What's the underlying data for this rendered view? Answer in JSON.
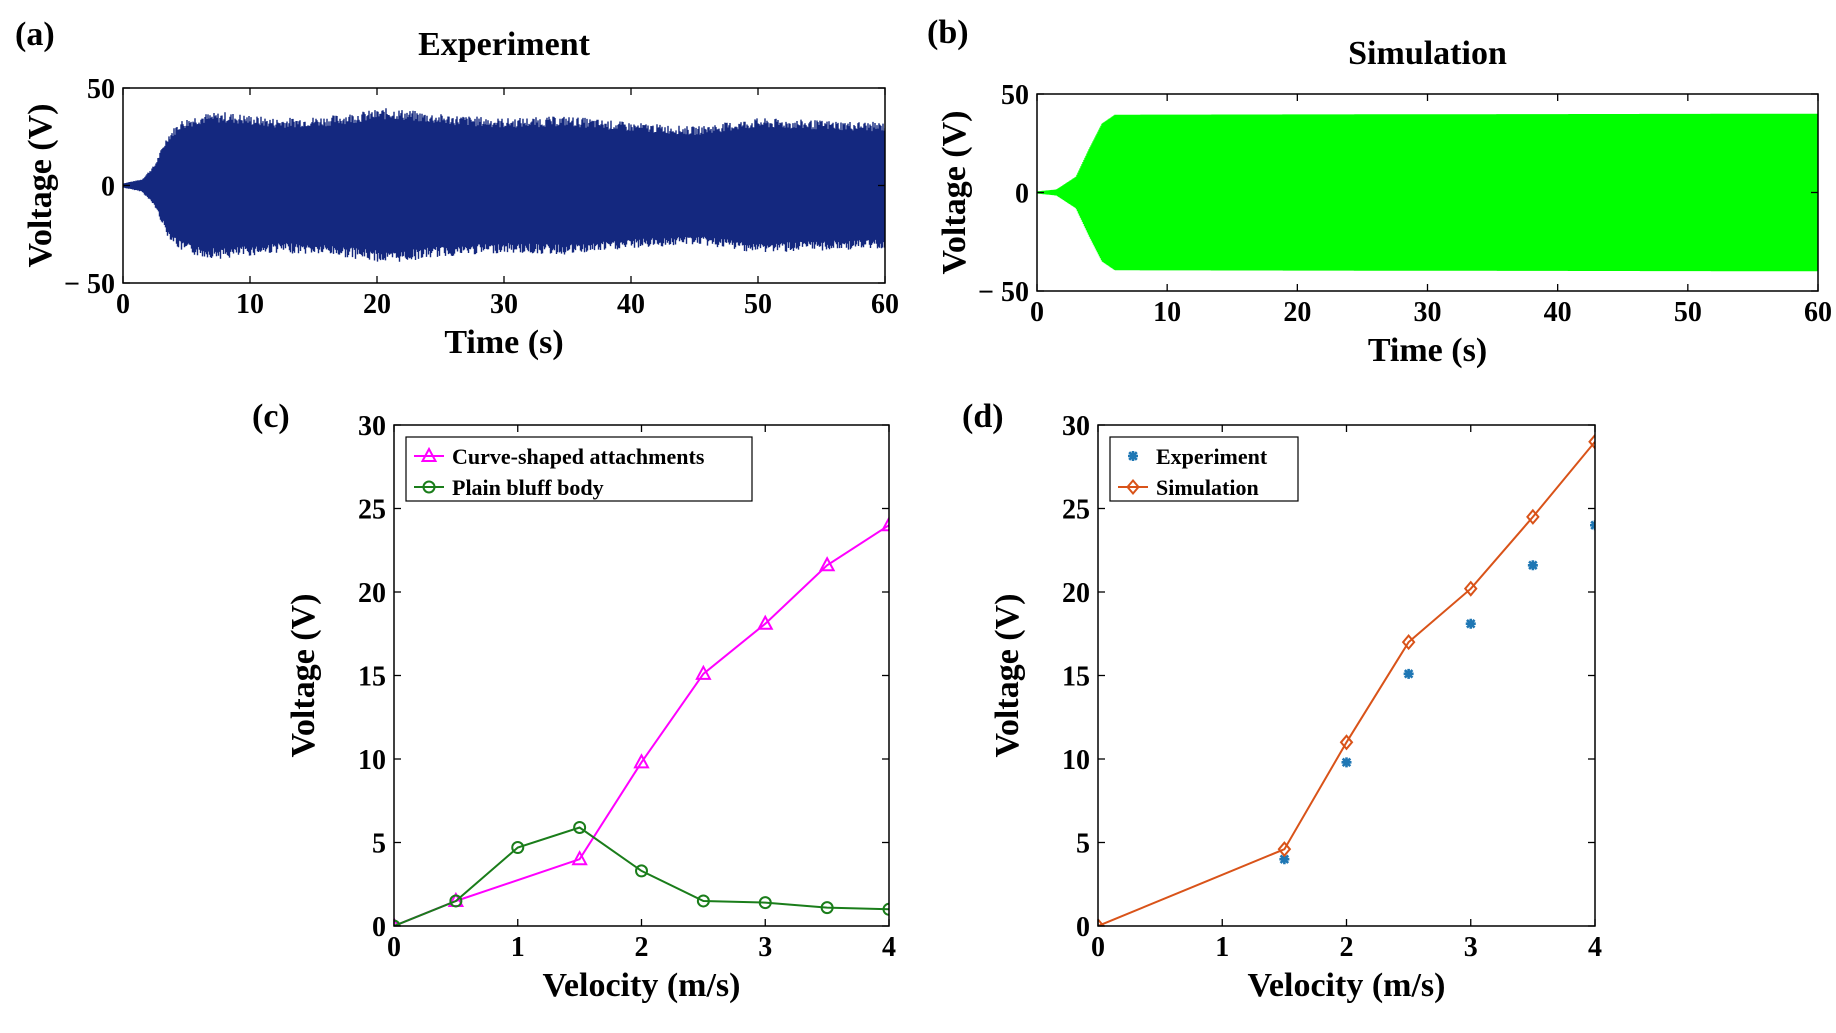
{
  "chart_data": [
    {
      "id": "a",
      "panel_label": "(a)",
      "type": "line",
      "title": "Experiment",
      "xlabel": "Time (s)",
      "ylabel": "Voltage (V)",
      "xlim": [
        0,
        60
      ],
      "ylim": [
        -50,
        50
      ],
      "xticks": [
        0,
        10,
        20,
        30,
        40,
        50,
        60
      ],
      "xtick_labels": [
        "0",
        "10",
        "20",
        "30",
        "40",
        "50",
        "60"
      ],
      "yticks": [
        -50,
        0,
        50
      ],
      "ytick_labels": [
        "− 50",
        "0",
        "50"
      ],
      "color": "#14287f",
      "signal": {
        "description": "dense voltage oscillation with growing then saturated envelope",
        "envelope": [
          {
            "t": 0,
            "amp": 1
          },
          {
            "t": 1.5,
            "amp": 3
          },
          {
            "t": 2.5,
            "amp": 10
          },
          {
            "t": 3.5,
            "amp": 24
          },
          {
            "t": 4.5,
            "amp": 31
          },
          {
            "t": 6,
            "amp": 34
          },
          {
            "t": 8,
            "amp": 35
          },
          {
            "t": 12,
            "amp": 32
          },
          {
            "t": 16,
            "amp": 33
          },
          {
            "t": 21,
            "amp": 37
          },
          {
            "t": 25,
            "amp": 34
          },
          {
            "t": 30,
            "amp": 32
          },
          {
            "t": 35,
            "amp": 33
          },
          {
            "t": 40,
            "amp": 30
          },
          {
            "t": 45,
            "amp": 28
          },
          {
            "t": 50,
            "amp": 32
          },
          {
            "t": 55,
            "amp": 31
          },
          {
            "t": 60,
            "amp": 30
          }
        ],
        "noise": 0.08,
        "seed": 7
      }
    },
    {
      "id": "b",
      "panel_label": "(b)",
      "type": "line",
      "title": "Simulation",
      "xlabel": "Time (s)",
      "ylabel": "Voltage (V)",
      "xlim": [
        0,
        60
      ],
      "ylim": [
        -50,
        50
      ],
      "xticks": [
        0,
        10,
        20,
        30,
        40,
        50,
        60
      ],
      "xtick_labels": [
        "0",
        "10",
        "20",
        "30",
        "40",
        "50",
        "60"
      ],
      "yticks": [
        -50,
        0,
        50
      ],
      "ytick_labels": [
        "− 50",
        "0",
        "50"
      ],
      "color": "#00ff00",
      "signal": {
        "description": "dense voltage oscillation saturating at about 40 V",
        "envelope": [
          {
            "t": 0,
            "amp": 0.5
          },
          {
            "t": 1.5,
            "amp": 1.5
          },
          {
            "t": 3,
            "amp": 8
          },
          {
            "t": 4,
            "amp": 22
          },
          {
            "t": 5,
            "amp": 35
          },
          {
            "t": 6,
            "amp": 39.5
          },
          {
            "t": 60,
            "amp": 40
          }
        ],
        "noise": 0.0,
        "seed": 3
      }
    },
    {
      "id": "c",
      "panel_label": "(c)",
      "type": "line",
      "title": "",
      "xlabel": "Velocity (m/s)",
      "ylabel": "Voltage (V)",
      "xlim": [
        0,
        4
      ],
      "ylim": [
        0,
        30
      ],
      "xticks": [
        0,
        1,
        2,
        3,
        4
      ],
      "xtick_labels": [
        "0",
        "1",
        "2",
        "3",
        "4"
      ],
      "yticks": [
        0,
        5,
        10,
        15,
        20,
        25,
        30
      ],
      "ytick_labels": [
        "0",
        "5",
        "10",
        "15",
        "20",
        "25",
        "30"
      ],
      "legend_position": "top-left",
      "series": [
        {
          "name": "Curve-shaped attachments",
          "color": "#ff00ff",
          "marker": "triangle",
          "line": true,
          "x": [
            0,
            0.5,
            1.5,
            2,
            2.5,
            3,
            3.5,
            4
          ],
          "y": [
            0,
            1.5,
            4.0,
            9.8,
            15.1,
            18.1,
            21.6,
            24.0
          ]
        },
        {
          "name": "Plain bluff body",
          "color": "#1a7d1a",
          "marker": "circle",
          "line": true,
          "x": [
            0,
            0.5,
            1,
            1.5,
            2,
            2.5,
            3,
            3.5,
            4
          ],
          "y": [
            0,
            1.5,
            4.7,
            5.9,
            3.3,
            1.5,
            1.4,
            1.1,
            1.0
          ]
        }
      ]
    },
    {
      "id": "d",
      "panel_label": "(d)",
      "type": "line",
      "title": "",
      "xlabel": "Velocity (m/s)",
      "ylabel": "Voltage (V)",
      "xlim": [
        0,
        4
      ],
      "ylim": [
        0,
        30
      ],
      "xticks": [
        0,
        1,
        2,
        3,
        4
      ],
      "xtick_labels": [
        "0",
        "1",
        "2",
        "3",
        "4"
      ],
      "yticks": [
        0,
        5,
        10,
        15,
        20,
        25,
        30
      ],
      "ytick_labels": [
        "0",
        "5",
        "10",
        "15",
        "20",
        "25",
        "30"
      ],
      "legend_position": "top-left",
      "series": [
        {
          "name": "Experiment",
          "color": "#1f77b4",
          "marker": "asterisk",
          "line": false,
          "x": [
            1.5,
            2,
            2.5,
            3,
            3.5,
            4
          ],
          "y": [
            4.0,
            9.8,
            15.1,
            18.1,
            21.6,
            24.0
          ]
        },
        {
          "name": "Simulation",
          "color": "#d95319",
          "marker": "diamond",
          "line": true,
          "x": [
            0,
            1.5,
            2,
            2.5,
            3,
            3.5,
            4
          ],
          "y": [
            0,
            4.6,
            11.0,
            17.0,
            20.2,
            24.5,
            29.0
          ]
        }
      ]
    }
  ]
}
